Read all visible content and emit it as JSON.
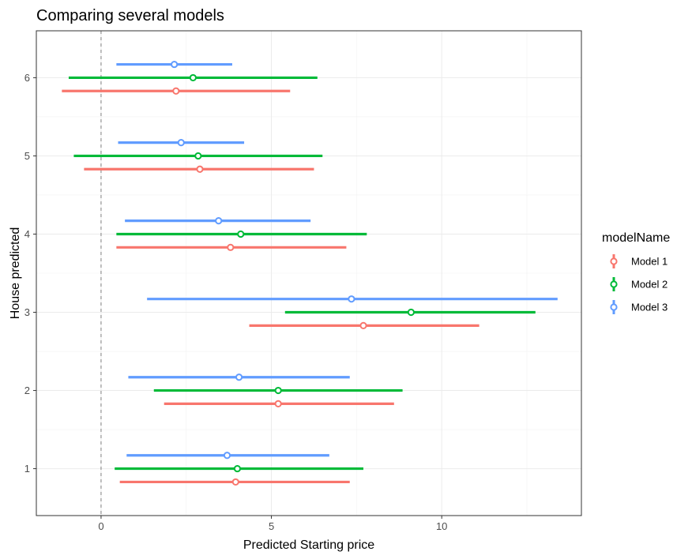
{
  "chart_data": {
    "type": "forest",
    "title": "Comparing several models",
    "xlabel": "Predicted Starting price",
    "ylabel": "House predicted",
    "xlim": [
      -1.9,
      14.1
    ],
    "ylim": [
      0.4,
      6.6
    ],
    "x_ticks": [
      0,
      5,
      10
    ],
    "y_ticks": [
      1,
      2,
      3,
      4,
      5,
      6
    ],
    "reference_line": 0,
    "grid": true,
    "legend": {
      "title": "modelName",
      "position": "right"
    },
    "series": [
      {
        "name": "Model 1",
        "color": "#F8766D",
        "offset": -0.17,
        "points": [
          {
            "house": 1,
            "estimate": 3.95,
            "low": 0.55,
            "high": 7.3
          },
          {
            "house": 2,
            "estimate": 5.2,
            "low": 1.85,
            "high": 8.6
          },
          {
            "house": 3,
            "estimate": 7.7,
            "low": 4.35,
            "high": 11.1
          },
          {
            "house": 4,
            "estimate": 3.8,
            "low": 0.45,
            "high": 7.2
          },
          {
            "house": 5,
            "estimate": 2.9,
            "low": -0.5,
            "high": 6.25
          },
          {
            "house": 6,
            "estimate": 2.2,
            "low": -1.15,
            "high": 5.55
          }
        ]
      },
      {
        "name": "Model 2",
        "color": "#00BA38",
        "offset": 0,
        "points": [
          {
            "house": 1,
            "estimate": 4.0,
            "low": 0.4,
            "high": 7.7
          },
          {
            "house": 2,
            "estimate": 5.2,
            "low": 1.55,
            "high": 8.85
          },
          {
            "house": 3,
            "estimate": 9.1,
            "low": 5.4,
            "high": 12.75
          },
          {
            "house": 4,
            "estimate": 4.1,
            "low": 0.45,
            "high": 7.8
          },
          {
            "house": 5,
            "estimate": 2.85,
            "low": -0.8,
            "high": 6.5
          },
          {
            "house": 6,
            "estimate": 2.7,
            "low": -0.95,
            "high": 6.35
          }
        ]
      },
      {
        "name": "Model 3",
        "color": "#619CFF",
        "offset": 0.17,
        "points": [
          {
            "house": 1,
            "estimate": 3.7,
            "low": 0.75,
            "high": 6.7
          },
          {
            "house": 2,
            "estimate": 4.05,
            "low": 0.8,
            "high": 7.3
          },
          {
            "house": 3,
            "estimate": 7.35,
            "low": 1.35,
            "high": 13.4
          },
          {
            "house": 4,
            "estimate": 3.45,
            "low": 0.7,
            "high": 6.15
          },
          {
            "house": 5,
            "estimate": 2.35,
            "low": 0.5,
            "high": 4.2
          },
          {
            "house": 6,
            "estimate": 2.15,
            "low": 0.45,
            "high": 3.85
          }
        ]
      }
    ]
  }
}
